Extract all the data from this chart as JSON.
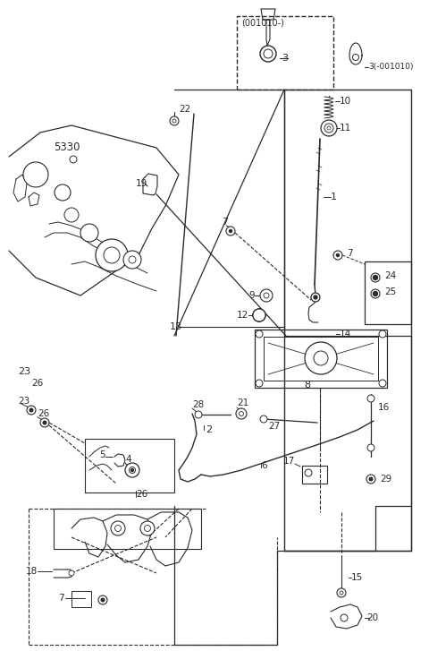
{
  "bg_color": "#ffffff",
  "lc": "#2a2a2a",
  "figsize": [
    4.8,
    7.27
  ],
  "dpi": 100
}
